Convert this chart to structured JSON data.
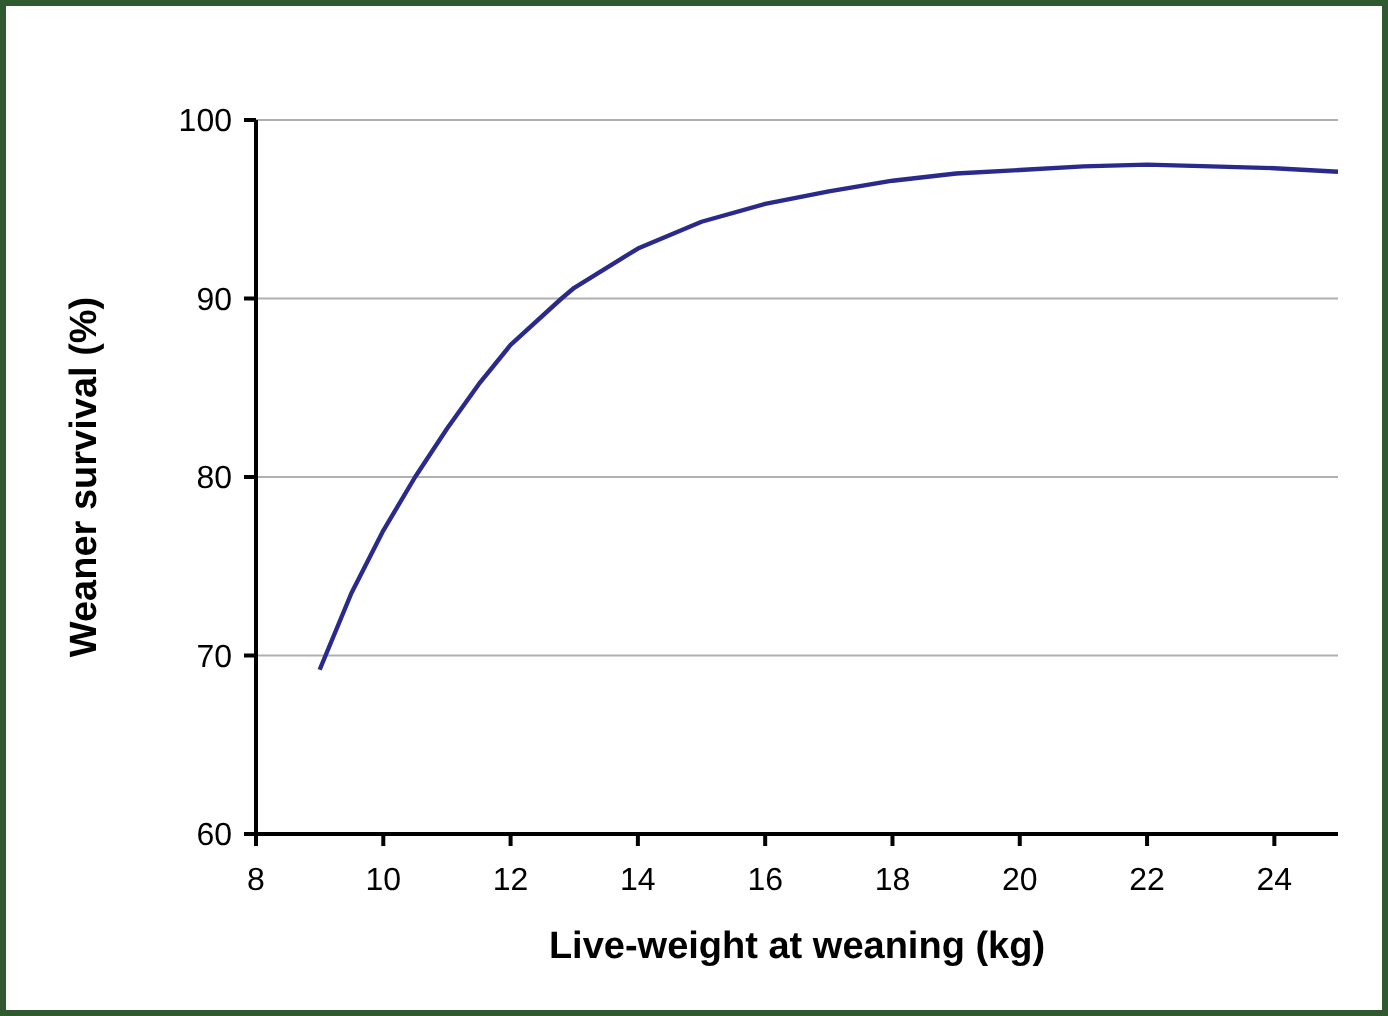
{
  "chart_data": {
    "type": "line",
    "xlabel": "Live-weight at weaning (kg)",
    "ylabel": "Weaner survival (%)",
    "x": [
      9,
      9.5,
      10,
      10.5,
      11,
      11.5,
      12,
      12.8,
      13,
      14,
      15,
      16,
      17,
      18,
      19,
      20,
      21,
      22,
      23,
      24,
      25
    ],
    "series": [
      {
        "color": "#2a2a8c",
        "values": [
          69.2,
          73.5,
          77,
          80,
          82.7,
          85.2,
          87.4,
          90,
          90.6,
          92.8,
          94.3,
          95.3,
          96,
          96.6,
          97,
          97.2,
          97.4,
          97.5,
          97.4,
          97.3,
          97.1
        ]
      }
    ],
    "xlim": [
      8,
      25
    ],
    "ylim": [
      60,
      100
    ],
    "xticks": [
      8,
      10,
      12,
      14,
      16,
      18,
      20,
      22,
      24
    ],
    "yticks": [
      60,
      70,
      80,
      90,
      100
    ],
    "grid": "y",
    "marker": "none",
    "line_style": "solid"
  }
}
